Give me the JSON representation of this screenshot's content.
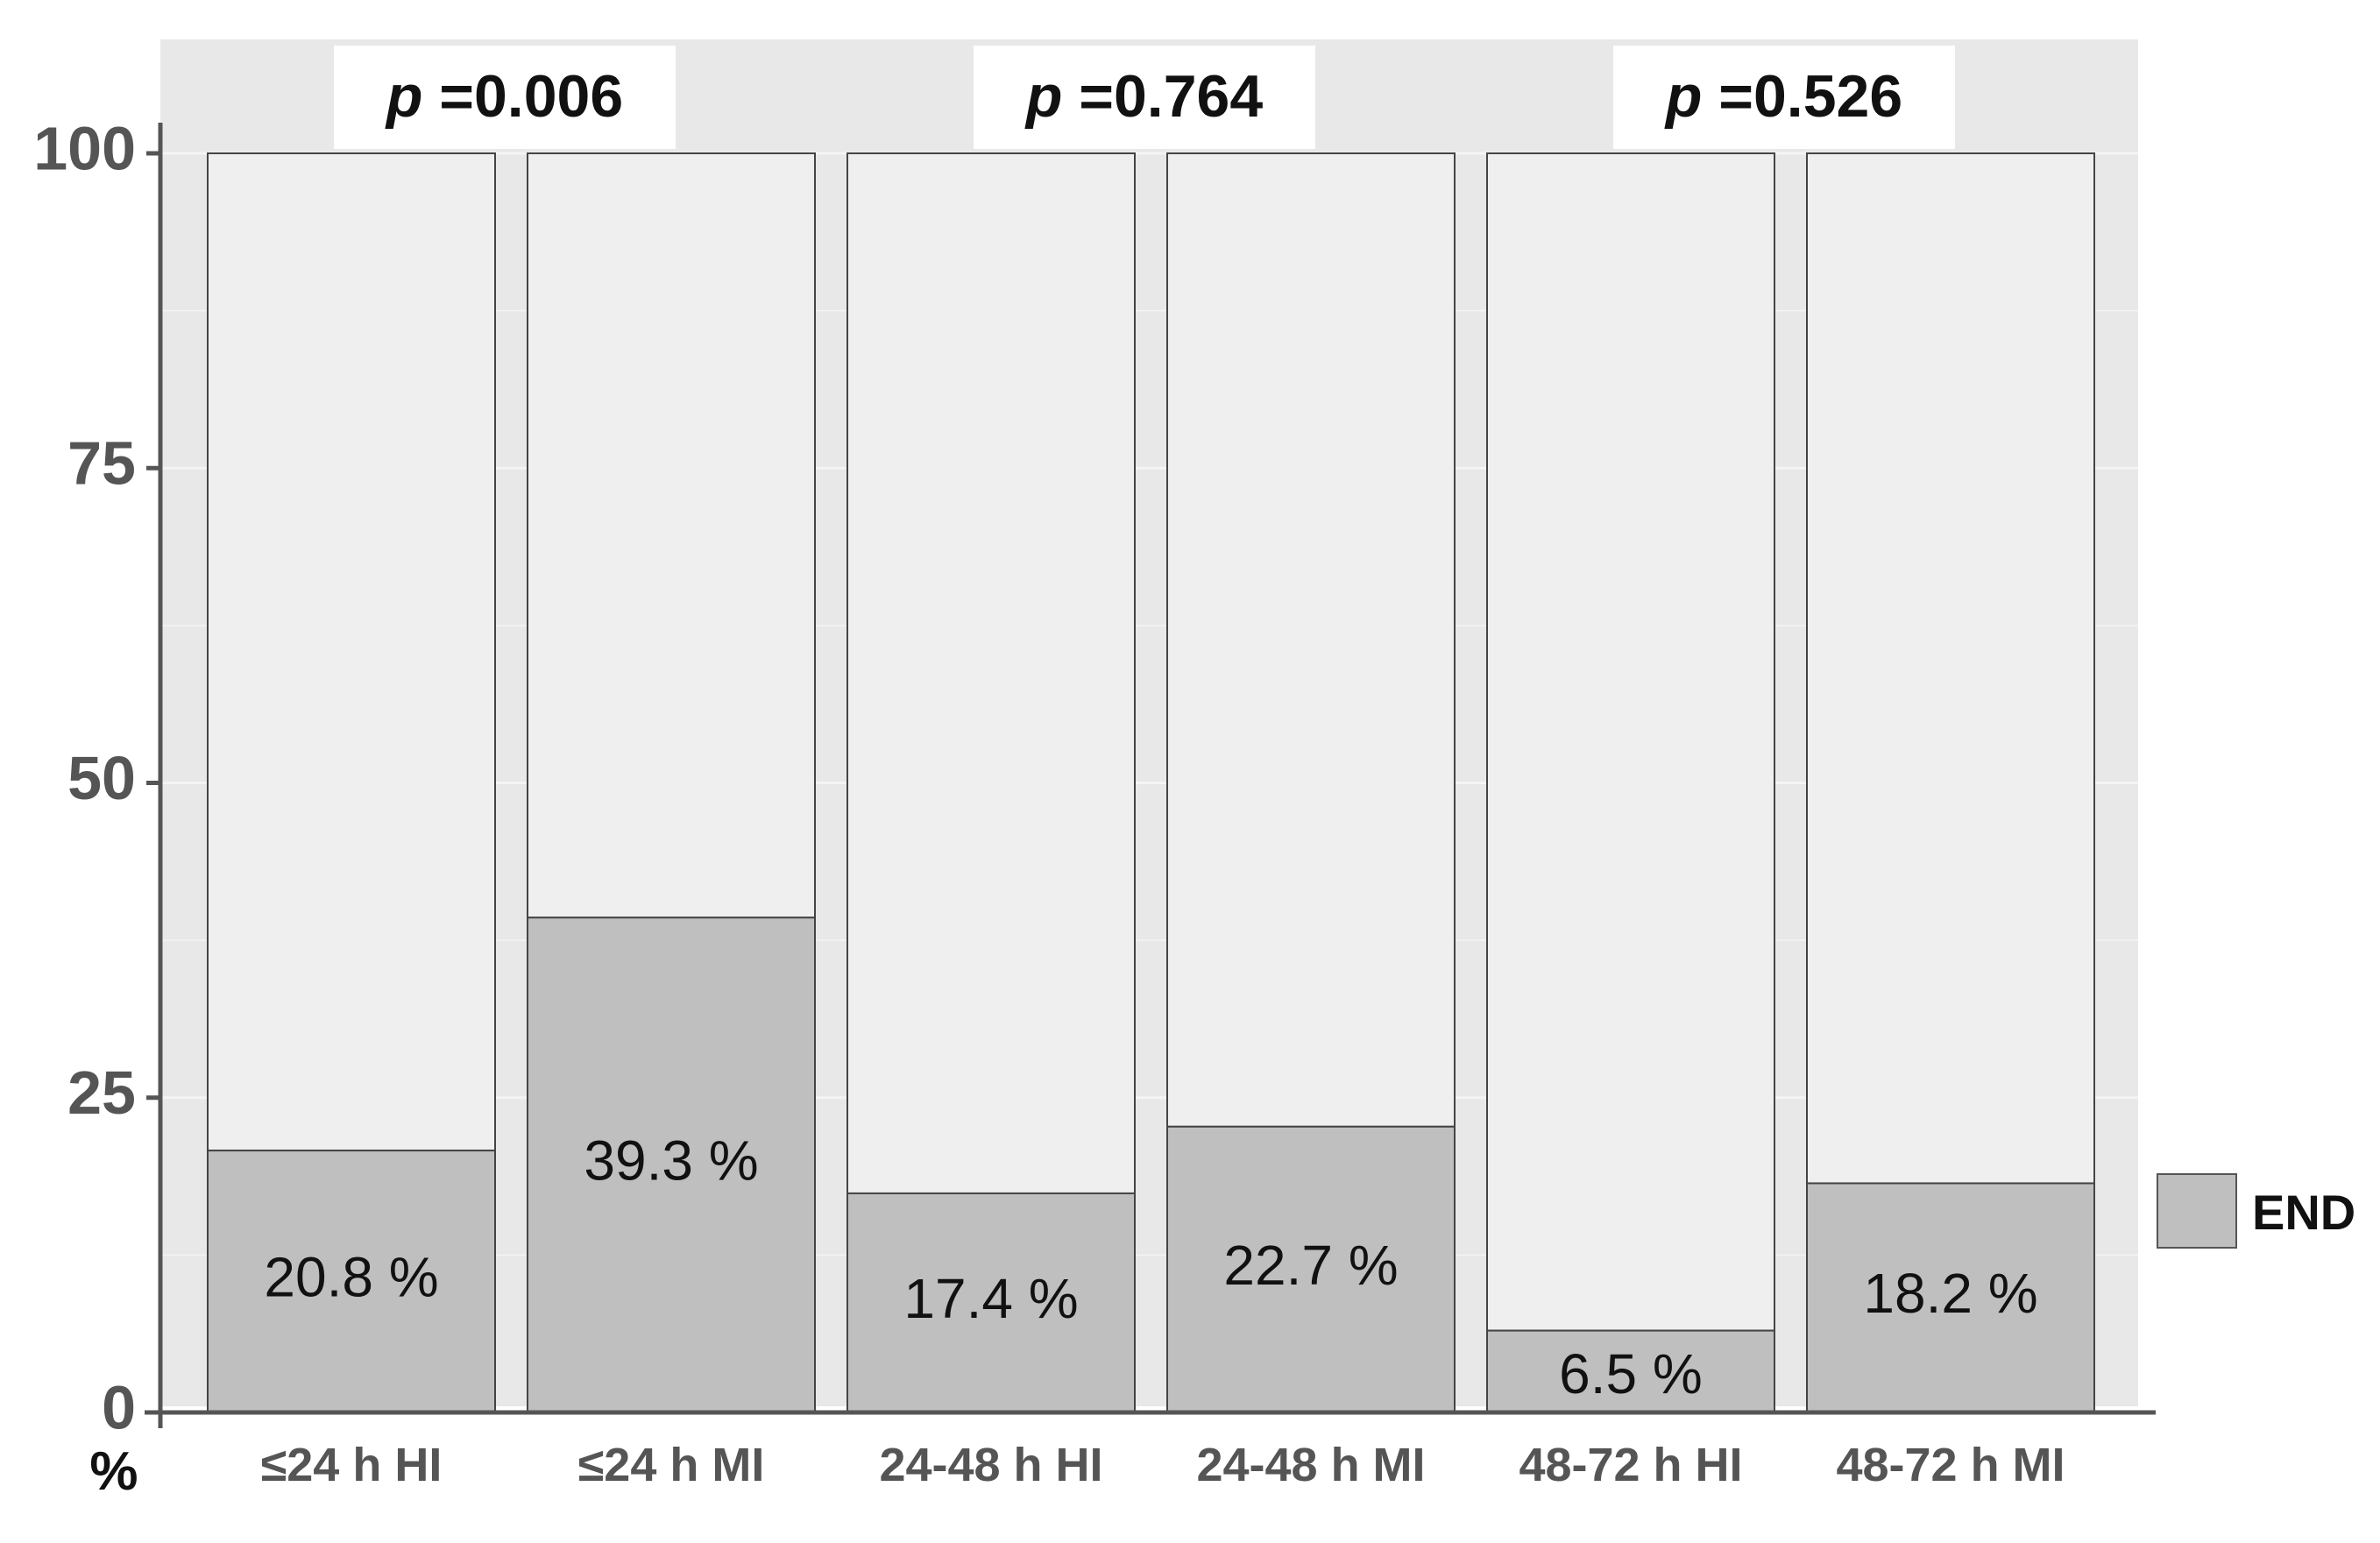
{
  "chart_data": {
    "type": "bar",
    "stacked": true,
    "categories": [
      "≤24 h HI",
      "≤24 h MI",
      "24-48 h HI",
      "24-48 h MI",
      "48-72 h HI",
      "48-72 h MI"
    ],
    "series": [
      {
        "name": "END",
        "values": [
          20.8,
          39.3,
          17.4,
          22.7,
          6.5,
          18.2
        ],
        "color": "#bfbfbf"
      }
    ],
    "total": 100,
    "remainder_color": "#efefef",
    "data_labels": [
      "20.8 %",
      "39.3 %",
      "17.4 %",
      "22.7 %",
      "6.5 %",
      "18.2 %"
    ],
    "ylabel": "%",
    "ylim": [
      0,
      100
    ],
    "yticks": [
      0,
      25,
      50,
      75,
      100
    ],
    "ytick_labels": [
      "0",
      "25",
      "50",
      "75",
      "100"
    ],
    "legend": {
      "position": "right",
      "entries": [
        "END"
      ]
    },
    "p_values": [
      {
        "prefix": "p",
        "text": "=0.006"
      },
      {
        "prefix": "p",
        "text": "=0.764"
      },
      {
        "prefix": "p",
        "text": "=0.526"
      }
    ],
    "panel_color": "#e8e8e8",
    "grid": true
  }
}
